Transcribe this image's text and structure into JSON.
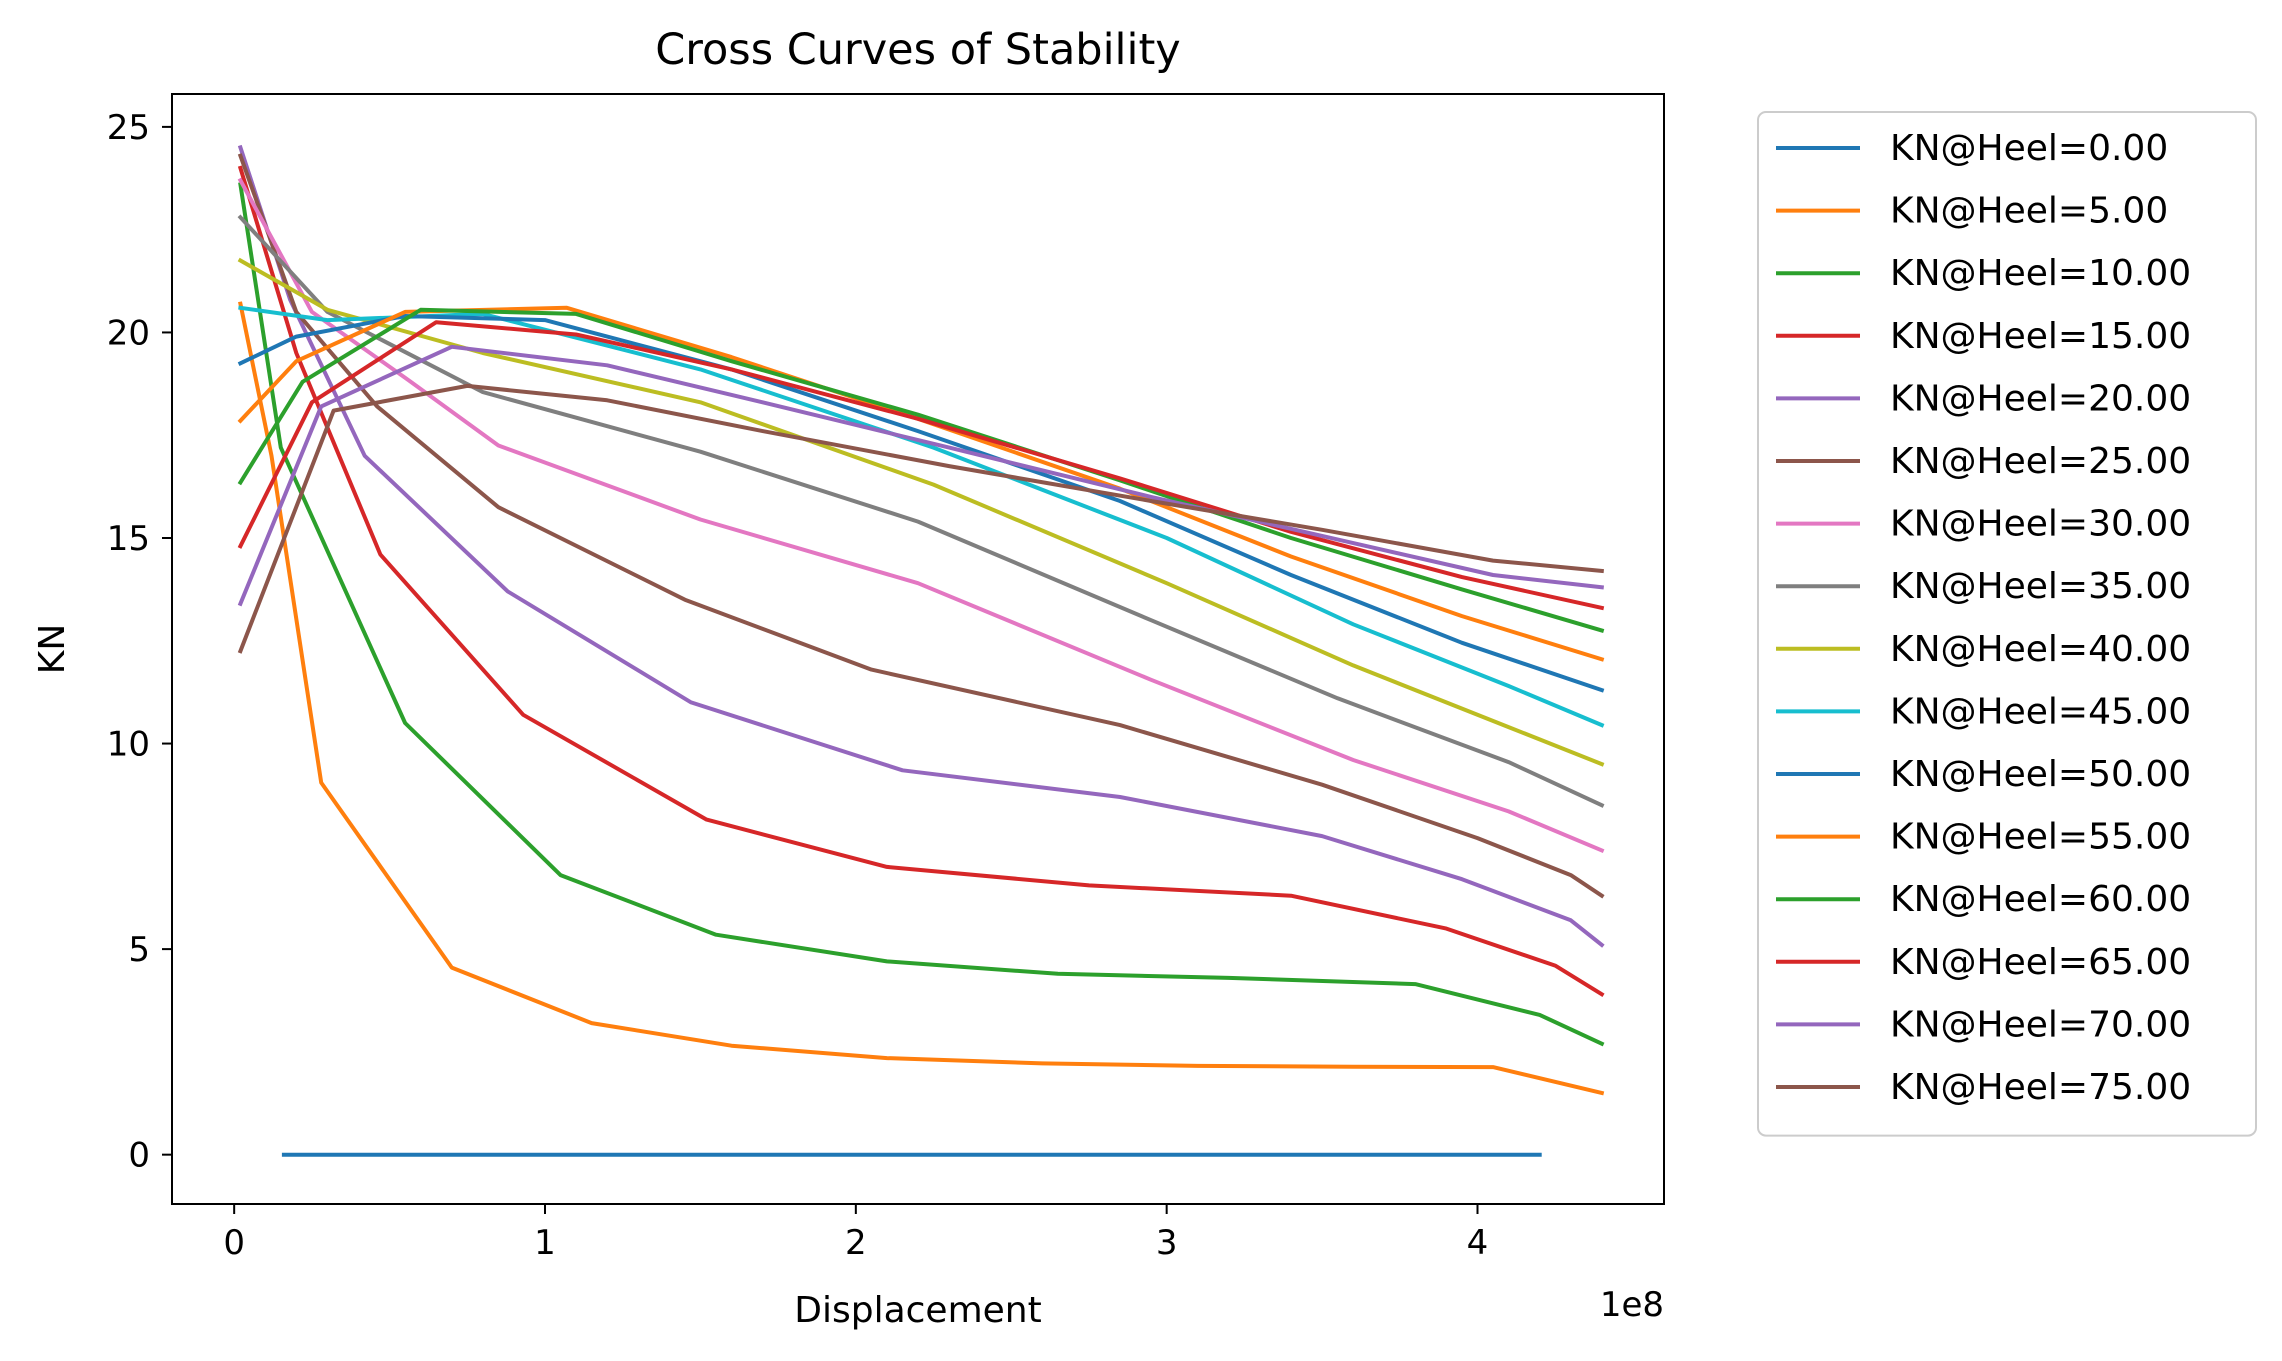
{
  "chart_data": {
    "type": "line",
    "title": "Cross Curves of Stability",
    "xlabel": "Displacement",
    "ylabel": "KN",
    "x_offset_label": "1e8",
    "xlim": [
      -0.2,
      4.6
    ],
    "ylim": [
      -1.2,
      25.8
    ],
    "xticks": [
      0,
      1,
      2,
      3,
      4
    ],
    "xtick_labels": [
      "0",
      "1",
      "2",
      "3",
      "4"
    ],
    "yticks": [
      0,
      5,
      10,
      15,
      20,
      25
    ],
    "ytick_labels": [
      "0",
      "5",
      "10",
      "15",
      "20",
      "25"
    ],
    "grid": false,
    "legend_position": "outside-right",
    "series": [
      {
        "name": "KN@Heel=0.00",
        "color": "#1f77b4",
        "x": [
          0.16,
          4.2
        ],
        "y": [
          0,
          0
        ]
      },
      {
        "name": "KN@Heel=5.00",
        "color": "#ff7f0e",
        "x": [
          0.02,
          0.12,
          0.28,
          0.7,
          1.15,
          1.6,
          2.1,
          2.6,
          3.1,
          3.6,
          4.05,
          4.4
        ],
        "y": [
          20.7,
          17.0,
          9.05,
          4.55,
          3.2,
          2.65,
          2.35,
          2.22,
          2.16,
          2.14,
          2.13,
          1.5
        ]
      },
      {
        "name": "KN@Heel=10.00",
        "color": "#2ca02c",
        "x": [
          0.02,
          0.15,
          0.55,
          1.05,
          1.55,
          2.1,
          2.65,
          3.2,
          3.8,
          4.2,
          4.4
        ],
        "y": [
          23.6,
          17.2,
          10.5,
          6.8,
          5.35,
          4.7,
          4.4,
          4.3,
          4.15,
          3.4,
          2.7
        ]
      },
      {
        "name": "KN@Heel=15.00",
        "color": "#d62728",
        "x": [
          0.02,
          0.2,
          0.47,
          0.93,
          1.52,
          2.1,
          2.75,
          3.4,
          3.9,
          4.25,
          4.4
        ],
        "y": [
          24.0,
          19.5,
          14.6,
          10.7,
          8.15,
          7.0,
          6.55,
          6.3,
          5.5,
          4.6,
          3.9
        ]
      },
      {
        "name": "KN@Heel=20.00",
        "color": "#9467bd",
        "x": [
          0.02,
          0.18,
          0.42,
          0.88,
          1.47,
          2.15,
          2.85,
          3.5,
          3.95,
          4.3,
          4.4
        ],
        "y": [
          24.5,
          20.8,
          17.0,
          13.7,
          11.0,
          9.35,
          8.7,
          7.75,
          6.7,
          5.7,
          5.1
        ]
      },
      {
        "name": "KN@Heel=25.00",
        "color": "#8c564b",
        "x": [
          0.02,
          0.2,
          0.46,
          0.85,
          1.45,
          2.05,
          2.85,
          3.5,
          4.0,
          4.3,
          4.4
        ],
        "y": [
          24.3,
          20.5,
          18.2,
          15.75,
          13.5,
          11.8,
          10.45,
          9.0,
          7.7,
          6.8,
          6.3
        ]
      },
      {
        "name": "KN@Heel=30.00",
        "color": "#e377c2",
        "x": [
          0.02,
          0.25,
          0.55,
          0.85,
          1.5,
          2.2,
          2.95,
          3.6,
          4.1,
          4.4
        ],
        "y": [
          23.7,
          20.5,
          18.9,
          17.25,
          15.45,
          13.9,
          11.55,
          9.6,
          8.35,
          7.4
        ]
      },
      {
        "name": "KN@Heel=35.00",
        "color": "#7f7f7f",
        "x": [
          0.02,
          0.3,
          0.8,
          1.5,
          2.2,
          2.95,
          3.55,
          4.1,
          4.4
        ],
        "y": [
          22.8,
          20.5,
          18.55,
          17.1,
          15.4,
          13.0,
          11.1,
          9.55,
          8.5
        ]
      },
      {
        "name": "KN@Heel=40.00",
        "color": "#bcbd22",
        "x": [
          0.02,
          0.3,
          0.8,
          1.5,
          2.25,
          3.0,
          3.6,
          4.1,
          4.4
        ],
        "y": [
          21.75,
          20.55,
          19.5,
          18.3,
          16.3,
          13.9,
          11.9,
          10.4,
          9.5
        ]
      },
      {
        "name": "KN@Heel=45.00",
        "color": "#17becf",
        "x": [
          0.02,
          0.3,
          0.8,
          1.5,
          2.25,
          3.0,
          3.6,
          4.1,
          4.4
        ],
        "y": [
          20.6,
          20.3,
          20.45,
          19.1,
          17.2,
          15.0,
          12.9,
          11.4,
          10.45
        ]
      },
      {
        "name": "KN@Heel=50.00",
        "color": "#1f77b4",
        "x": [
          0.02,
          0.2,
          0.55,
          1.0,
          1.6,
          2.2,
          2.85,
          3.4,
          3.95,
          4.4
        ],
        "y": [
          19.25,
          19.9,
          20.4,
          20.3,
          19.1,
          17.6,
          15.9,
          14.1,
          12.45,
          11.3
        ]
      },
      {
        "name": "KN@Heel=55.00",
        "color": "#ff7f0e",
        "x": [
          0.02,
          0.2,
          0.55,
          1.07,
          1.6,
          2.2,
          2.85,
          3.4,
          3.95,
          4.4
        ],
        "y": [
          17.85,
          19.3,
          20.5,
          20.6,
          19.4,
          17.9,
          16.2,
          14.55,
          13.1,
          12.05
        ]
      },
      {
        "name": "KN@Heel=60.00",
        "color": "#2ca02c",
        "x": [
          0.02,
          0.22,
          0.6,
          1.1,
          1.6,
          2.2,
          2.85,
          3.4,
          3.95,
          4.4
        ],
        "y": [
          16.35,
          18.8,
          20.55,
          20.45,
          19.3,
          18.0,
          16.4,
          15.0,
          13.75,
          12.75
        ]
      },
      {
        "name": "KN@Heel=65.00",
        "color": "#d62728",
        "x": [
          0.02,
          0.25,
          0.65,
          1.1,
          1.6,
          2.2,
          2.85,
          3.4,
          3.95,
          4.4
        ],
        "y": [
          14.8,
          18.3,
          20.25,
          19.95,
          19.1,
          17.9,
          16.45,
          15.15,
          14.05,
          13.3
        ]
      },
      {
        "name": "KN@Heel=70.00",
        "color": "#9467bd",
        "x": [
          0.02,
          0.28,
          0.7,
          1.2,
          1.7,
          2.3,
          2.95,
          3.5,
          4.05,
          4.4
        ],
        "y": [
          13.4,
          18.2,
          19.65,
          19.2,
          18.3,
          17.2,
          16.0,
          15.05,
          14.1,
          13.8
        ]
      },
      {
        "name": "KN@Heel=75.00",
        "color": "#8c564b",
        "x": [
          0.02,
          0.32,
          0.75,
          1.2,
          1.7,
          2.3,
          2.95,
          3.5,
          4.05,
          4.4
        ],
        "y": [
          12.25,
          18.1,
          18.7,
          18.35,
          17.6,
          16.75,
          15.9,
          15.2,
          14.45,
          14.2
        ]
      }
    ]
  }
}
